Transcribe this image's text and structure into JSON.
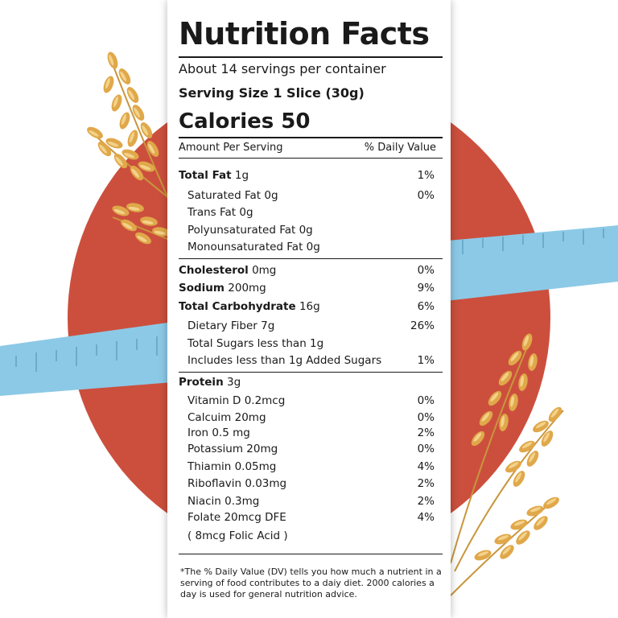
{
  "colors": {
    "circle": "#cc4f3d",
    "tape": "#8cc9e6",
    "wheat": "#e0a84a",
    "text": "#1a1a1a"
  },
  "label": {
    "title": "Nutrition Facts",
    "servings": "About 14 servings per container",
    "serving_size": "Serving Size 1 Slice (30g)",
    "calories": "Calories 50",
    "col_amount": "Amount Per Serving",
    "col_dv": "% Daily Value",
    "rows": [
      {
        "id": "total-fat",
        "name": "Total Fat",
        "amount": " 1g",
        "dv": "1%"
      },
      {
        "id": "saturated-fat",
        "text": "Saturated Fat 0g",
        "dv": "0%"
      },
      {
        "id": "trans-fat",
        "text": "Trans Fat 0g",
        "dv": ""
      },
      {
        "id": "polyunsaturated-fat",
        "text": "Polyunsaturated Fat 0g",
        "dv": ""
      },
      {
        "id": "monounsaturated-fat",
        "text": "Monounsaturated Fat 0g",
        "dv": ""
      },
      {
        "id": "cholesterol",
        "name": "Cholesterol",
        "amount": " 0mg",
        "dv": "0%"
      },
      {
        "id": "sodium",
        "name": "Sodium",
        "amount": " 200mg",
        "dv": "9%"
      },
      {
        "id": "total-carbohydrate",
        "name": "Total Carbohydrate",
        "amount": " 16g",
        "dv": "6%"
      },
      {
        "id": "dietary-fiber",
        "text": "Dietary Fiber 7g",
        "dv": "26%"
      },
      {
        "id": "total-sugars",
        "text": "Total Sugars less than 1g",
        "dv": ""
      },
      {
        "id": "added-sugars",
        "text": "Includes less than 1g Added Sugars",
        "dv": "1%"
      },
      {
        "id": "protein",
        "name": "Protein",
        "amount": " 3g",
        "dv": ""
      },
      {
        "id": "vitamin-d",
        "text": "Vitamin D 0.2mcg",
        "dv": "0%"
      },
      {
        "id": "calcium",
        "text": "Calcuim 20mg",
        "dv": "0%"
      },
      {
        "id": "iron",
        "text": "Iron 0.5 mg",
        "dv": "2%"
      },
      {
        "id": "potassium",
        "text": "Potassium 20mg",
        "dv": "0%"
      },
      {
        "id": "thiamin",
        "text": "Thiamin  0.05mg",
        "dv": "4%"
      },
      {
        "id": "riboflavin",
        "text": "Riboflavin 0.03mg",
        "dv": "2%"
      },
      {
        "id": "niacin",
        "text": "Niacin 0.3mg",
        "dv": "2%"
      },
      {
        "id": "folate",
        "text": "Folate 20mcg DFE",
        "dv": "4%"
      },
      {
        "id": "folic-acid",
        "text": "( 8mcg Folic Acid )",
        "dv": ""
      }
    ],
    "footnote": "*The % Daily Value (DV) tells you how much a nutrient in a serving of food contributes to a daiy diet. 2000 calories a day is used for general nutrition advice."
  }
}
